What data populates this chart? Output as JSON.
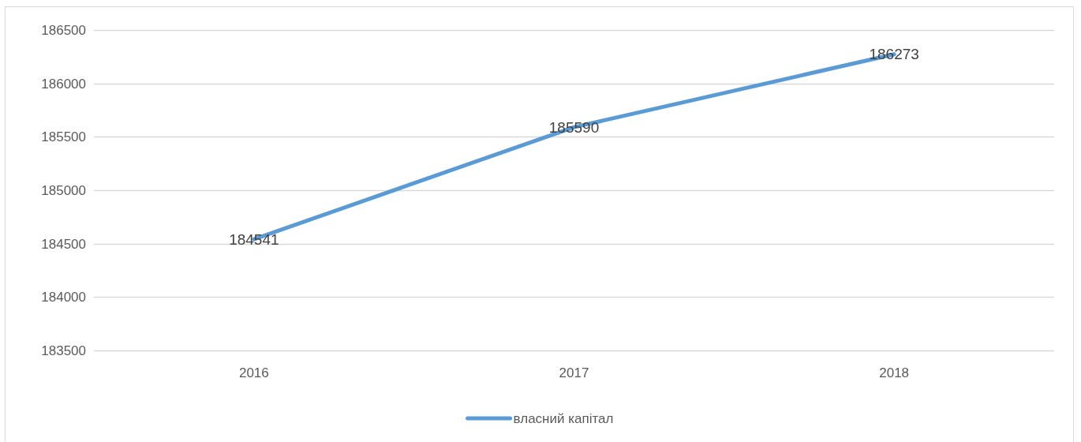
{
  "chart_data": {
    "type": "line",
    "categories": [
      "2016",
      "2017",
      "2018"
    ],
    "series": [
      {
        "name": "власний капітал",
        "color": "#5b9bd5",
        "values": [
          184541,
          185590,
          186273
        ]
      }
    ],
    "ylim": [
      183500,
      186500
    ],
    "yticks": [
      183500,
      184000,
      184500,
      185000,
      185500,
      186000,
      186500
    ],
    "grid": "y",
    "legend": "bottom",
    "data_labels": true,
    "marker": "none",
    "line_style": "solid"
  }
}
